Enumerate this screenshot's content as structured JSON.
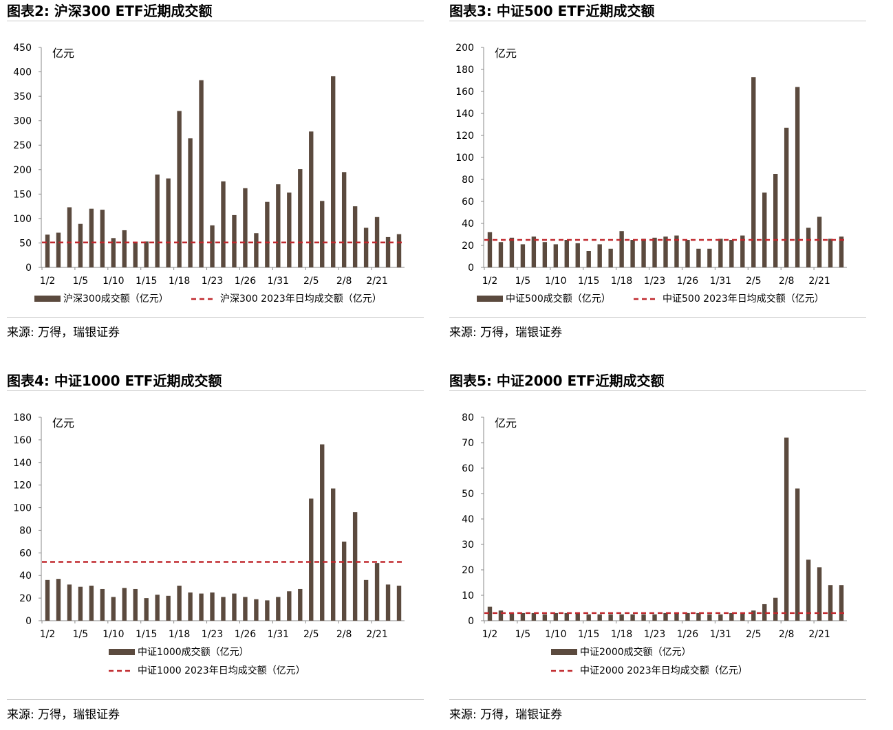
{
  "panels": [
    {
      "title": "图表2: 沪深300 ETF近期成交额",
      "source": "来源: 万得，瑞银证券",
      "chart_data": {
        "type": "bar",
        "unit_label": "亿元",
        "ylim": [
          0,
          450
        ],
        "yticks": [
          0,
          50,
          100,
          150,
          200,
          250,
          300,
          350,
          400,
          450
        ],
        "x_tick_labels": {
          "0": "1/2",
          "3": "1/5",
          "6": "1/10",
          "9": "1/15",
          "12": "1/18",
          "15": "1/23",
          "18": "1/26",
          "21": "1/31",
          "24": "2/5",
          "27": "2/8",
          "30": "2/21"
        },
        "values": [
          67,
          71,
          123,
          89,
          120,
          118,
          60,
          76,
          50,
          53,
          190,
          182,
          320,
          264,
          383,
          86,
          176,
          107,
          162,
          70,
          134,
          170,
          153,
          201,
          278,
          136,
          391,
          195,
          125,
          81,
          103,
          62,
          68
        ],
        "avg_line": 51,
        "legend": [
          "沪深300成交额（亿元）",
          "沪深300 2023年日均成交额（亿元）"
        ],
        "legend_layout": "single-row"
      }
    },
    {
      "title": "图表3: 中证500 ETF近期成交额",
      "source": "来源: 万得，瑞银证券",
      "chart_data": {
        "type": "bar",
        "unit_label": "亿元",
        "ylim": [
          0,
          200
        ],
        "yticks": [
          0,
          20,
          40,
          60,
          80,
          100,
          120,
          140,
          160,
          180,
          200
        ],
        "x_tick_labels": {
          "0": "1/2",
          "3": "1/5",
          "6": "1/10",
          "9": "1/15",
          "12": "1/18",
          "15": "1/23",
          "18": "1/26",
          "21": "1/31",
          "24": "2/5",
          "27": "2/8",
          "30": "2/21"
        },
        "values": [
          32,
          23,
          27,
          21,
          28,
          23,
          21,
          25,
          22,
          15,
          21,
          17,
          33,
          25,
          26,
          27,
          28,
          29,
          25,
          17,
          17,
          26,
          25,
          29,
          173,
          68,
          85,
          127,
          164,
          36,
          46,
          26,
          28
        ],
        "avg_line": 25,
        "legend": [
          "中证500成交额（亿元）",
          "中证500 2023年日均成交额（亿元）"
        ],
        "legend_layout": "single-row"
      }
    },
    {
      "title": "图表4: 中证1000 ETF近期成交额",
      "source": "来源: 万得，瑞银证券",
      "chart_data": {
        "type": "bar",
        "unit_label": "亿元",
        "ylim": [
          0,
          180
        ],
        "yticks": [
          0,
          20,
          40,
          60,
          80,
          100,
          120,
          140,
          160,
          180
        ],
        "x_tick_labels": {
          "0": "1/2",
          "3": "1/5",
          "6": "1/10",
          "9": "1/15",
          "12": "1/18",
          "15": "1/23",
          "18": "1/26",
          "21": "1/31",
          "24": "2/5",
          "27": "2/8",
          "30": "2/21"
        },
        "values": [
          36,
          37,
          32,
          30,
          31,
          28,
          21,
          29,
          28,
          20,
          23,
          22,
          31,
          25,
          24,
          25,
          21,
          24,
          21,
          19,
          18,
          21,
          26,
          28,
          108,
          156,
          117,
          70,
          96,
          36,
          51,
          32,
          31
        ],
        "avg_line": 52,
        "legend": [
          "中证1000成交额（亿元）",
          "中证1000 2023年日均成交额（亿元）"
        ],
        "legend_layout": "stacked"
      }
    },
    {
      "title": "图表5: 中证2000 ETF近期成交额",
      "source": "来源: 万得，瑞银证券",
      "chart_data": {
        "type": "bar",
        "unit_label": "亿元",
        "ylim": [
          0,
          80
        ],
        "yticks": [
          0,
          10,
          20,
          30,
          40,
          50,
          60,
          70,
          80
        ],
        "x_tick_labels": {
          "0": "1/2",
          "3": "1/5",
          "6": "1/10",
          "9": "1/15",
          "12": "1/18",
          "15": "1/23",
          "18": "1/26",
          "21": "1/31",
          "24": "2/5",
          "27": "2/8",
          "30": "2/21"
        },
        "values": [
          5.5,
          4,
          3,
          3,
          3,
          2.5,
          3,
          3,
          3,
          2.5,
          2.5,
          2.5,
          2.5,
          2.5,
          2.5,
          2.5,
          3,
          3,
          3,
          3,
          2.5,
          2.5,
          3,
          3,
          4,
          6.5,
          9,
          72,
          52,
          24,
          21,
          14,
          14
        ],
        "avg_line": 3,
        "legend": [
          "中证2000成交额（亿元）",
          "中证2000 2023年日均成交额（亿元）"
        ],
        "legend_layout": "stacked"
      }
    }
  ],
  "colors": {
    "bar": "#5b4a3e",
    "avg_line": "#c0282d",
    "axis": "#888888"
  }
}
